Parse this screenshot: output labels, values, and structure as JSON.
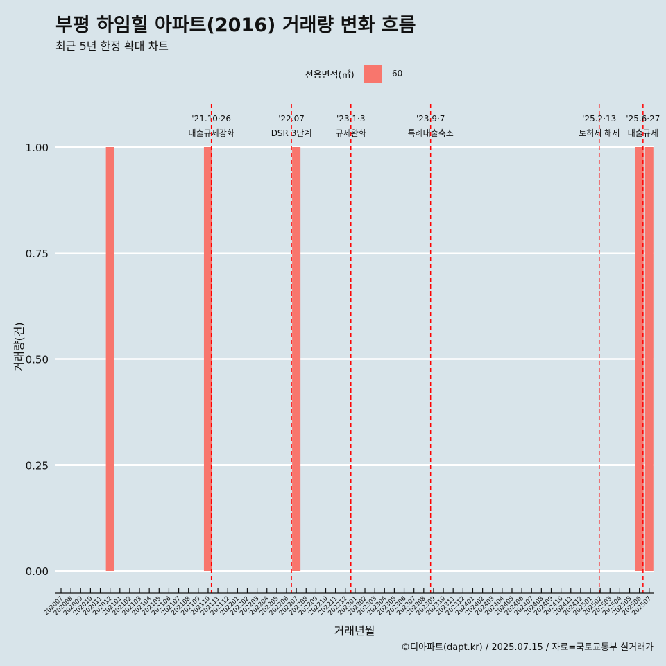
{
  "title": "부평 하임힐 아파트(2016) 거래량 변화 흐름",
  "subtitle": "최근 5년 한정 확대 차트",
  "caption": "©디아파트(dapt.kr) / 2025.07.15 / 자료=국토교통부 실거래가",
  "legend": {
    "title": "전용면적(㎡)",
    "label": "60"
  },
  "colors": {
    "background": "#d8e4ea",
    "bar": "#f8766d",
    "event_line": "#ff0000",
    "grid": "#ffffff"
  },
  "chart_data": {
    "type": "bar",
    "xlabel": "거래년월",
    "ylabel": "거래량(건)",
    "ylim": [
      0,
      1
    ],
    "yticks": [
      0,
      0.25,
      0.5,
      0.75,
      1
    ],
    "ytick_labels": [
      "0.00",
      "0.25",
      "0.50",
      "0.75",
      "1.00"
    ],
    "categories": [
      "202007",
      "202008",
      "202009",
      "202010",
      "202011",
      "202012",
      "202101",
      "202102",
      "202103",
      "202104",
      "202105",
      "202106",
      "202107",
      "202108",
      "202109",
      "202110",
      "202111",
      "202112",
      "202201",
      "202202",
      "202203",
      "202204",
      "202205",
      "202206",
      "202207",
      "202208",
      "202209",
      "202210",
      "202211",
      "202212",
      "202301",
      "202302",
      "202303",
      "202304",
      "202305",
      "202306",
      "202307",
      "202308",
      "202309",
      "202310",
      "202311",
      "202312",
      "202401",
      "202402",
      "202403",
      "202404",
      "202405",
      "202406",
      "202407",
      "202408",
      "202409",
      "202410",
      "202411",
      "202412",
      "202501",
      "202502",
      "202503",
      "202504",
      "202505",
      "202506",
      "202507"
    ],
    "series": [
      {
        "name": "60",
        "values": [
          {
            "x": "202012",
            "y": 1
          },
          {
            "x": "202110",
            "y": 1
          },
          {
            "x": "202207",
            "y": 1
          },
          {
            "x": "202506",
            "y": 1
          },
          {
            "x": "202507",
            "y": 1
          }
        ]
      }
    ],
    "events": [
      {
        "date": "2021-10-26",
        "label_top": "'21.10·26",
        "label_bottom": "대출규제강화"
      },
      {
        "date": "2022-07-01",
        "label_top": "'22.07",
        "label_bottom": "DSR 3단계"
      },
      {
        "date": "2023-01-03",
        "label_top": "'23.1·3",
        "label_bottom": "규제완화"
      },
      {
        "date": "2023-09-07",
        "label_top": "'23.9·7",
        "label_bottom": "특례대출축소"
      },
      {
        "date": "2025-02-13",
        "label_top": "'25.2·13",
        "label_bottom": "토허제 해제"
      },
      {
        "date": "2025-06-27",
        "label_top": "'25.6·27",
        "label_bottom": "대출규제"
      }
    ]
  }
}
